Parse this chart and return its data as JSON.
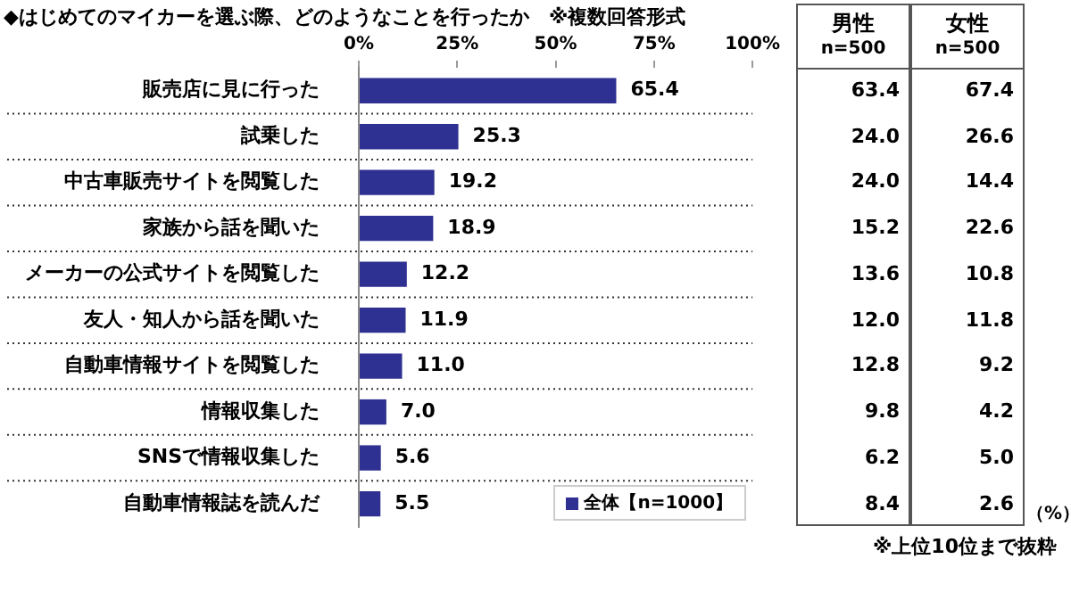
{
  "chart_data": [
    {
      "type": "bar",
      "orientation": "horizontal",
      "title": "◆はじめてのマイカーを選ぶ際、どのようなことを行ったか　※複数回答形式",
      "categories": [
        "販売店に見に行った",
        "試乗した",
        "中古車販売サイトを閲覧した",
        "家族から話を聞いた",
        "メーカーの公式サイトを閲覧した",
        "友人・知人から話を聞いた",
        "自動車情報サイトを閲覧した",
        "情報収集した",
        "SNSで情報収集した",
        "自動車情報誌を読んだ"
      ],
      "series": [
        {
          "name": "全体【n=1000】",
          "color": "#2e3192",
          "values": [
            65.4,
            25.3,
            19.2,
            18.9,
            12.2,
            11.9,
            11.0,
            7.0,
            5.6,
            5.5
          ],
          "value_labels": [
            "65.4",
            "25.3",
            "19.2",
            "18.9",
            "12.2",
            "11.9",
            "11.0",
            "7.0",
            "5.6",
            "5.5"
          ]
        }
      ],
      "xlim": [
        0,
        100
      ],
      "xticks": [
        {
          "value": 0,
          "label": "0%"
        },
        {
          "value": 25,
          "label": "25%"
        },
        {
          "value": 50,
          "label": "50%"
        },
        {
          "value": 75,
          "label": "75%"
        },
        {
          "value": 100,
          "label": "100%"
        }
      ],
      "grid": "y",
      "legend": "bottom right"
    },
    {
      "type": "heatmap",
      "categories": [
        "男性",
        "女性"
      ],
      "y_categories": [
        null,
        null,
        null,
        null,
        null,
        null,
        null,
        null,
        null,
        null
      ],
      "cells": [
        [
          63.4,
          67.4
        ],
        [
          24.0,
          26.6
        ],
        [
          24.0,
          14.4
        ],
        [
          15.2,
          22.6
        ],
        [
          13.6,
          10.8
        ],
        [
          12.0,
          11.8
        ],
        [
          12.8,
          9.2
        ],
        [
          9.8,
          4.2
        ],
        [
          6.2,
          5.0
        ],
        [
          8.4,
          2.6
        ]
      ],
      "cell_labels": [
        [
          "63.4",
          "67.4"
        ],
        [
          "24.0",
          "26.6"
        ],
        [
          "24.0",
          "14.4"
        ],
        [
          "15.2",
          "22.6"
        ],
        [
          "13.6",
          "10.8"
        ],
        [
          "12.0",
          "11.8"
        ],
        [
          "12.8",
          "9.2"
        ],
        [
          "9.8",
          "4.2"
        ],
        [
          "6.2",
          "5.0"
        ],
        [
          "8.4",
          "2.6"
        ]
      ],
      "annotations": [
        "n=500",
        "n=500",
        "（%）",
        "※上位10位まで抜粋"
      ]
    }
  ]
}
